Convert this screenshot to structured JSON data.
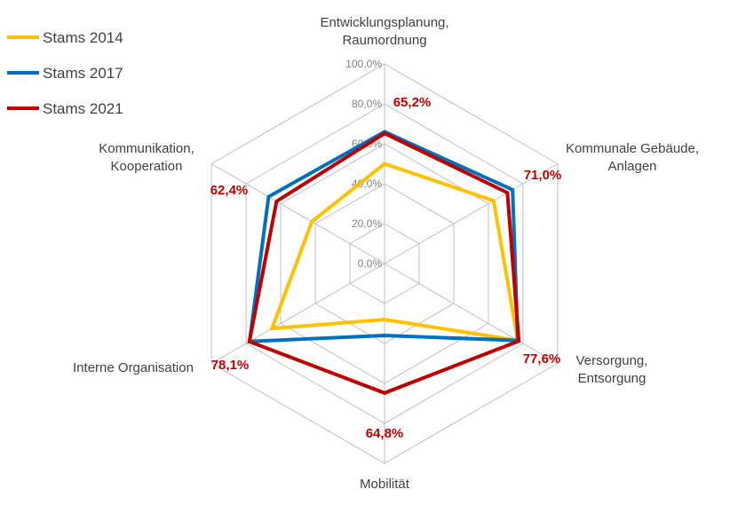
{
  "chart_data": {
    "type": "radar",
    "axes": [
      [
        "Entwicklungsplanung,",
        "Raumordnung"
      ],
      [
        "Kommunale Gebäude,",
        "Anlagen"
      ],
      [
        "Versorgung,",
        "Entsorgung"
      ],
      [
        "Mobilität"
      ],
      [
        "Interne Organisation"
      ],
      [
        "Kommunikation,",
        "Kooperation"
      ]
    ],
    "ticks": [
      "0,0%",
      "20,0%",
      "40,0%",
      "60,0%",
      "80,0%",
      "100,0%"
    ],
    "range": [
      0,
      100
    ],
    "grid": true,
    "legend_position": "top-left",
    "series": [
      {
        "name": "Stams 2014",
        "color": "#ffc000",
        "values": [
          50,
          63,
          77,
          28,
          65,
          42
        ]
      },
      {
        "name": "Stams 2017",
        "color": "#0070c0",
        "values": [
          66,
          74,
          77,
          36,
          78,
          67
        ]
      },
      {
        "name": "Stams 2021",
        "color": "#c00000",
        "values": [
          65.2,
          71.0,
          77.6,
          64.8,
          78.1,
          62.4
        ]
      }
    ],
    "data_labels": [
      "65,2%",
      "71,0%",
      "77,6%",
      "64,8%",
      "78,1%",
      "62,4%"
    ]
  }
}
